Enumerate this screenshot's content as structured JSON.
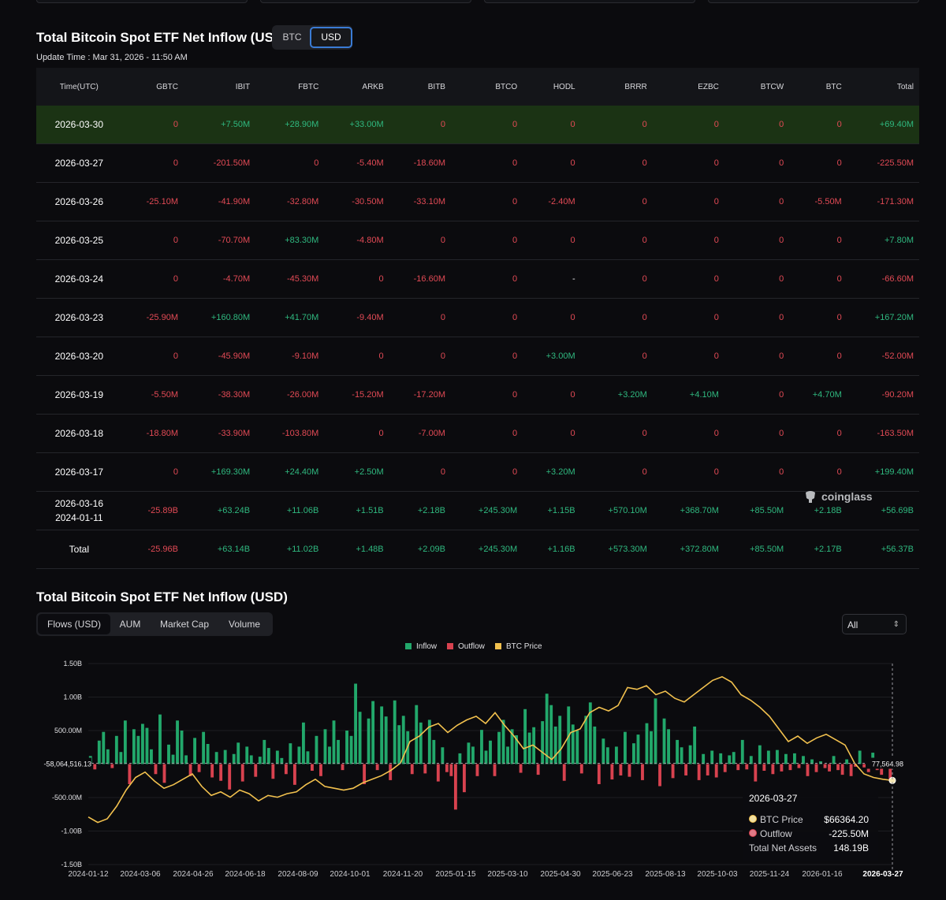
{
  "header": {
    "title": "Total Bitcoin Spot ETF Net Inflow (USD)",
    "units": [
      "BTC",
      "USD"
    ],
    "active_unit": "USD",
    "update_time": "Update Time : Mar 31, 2026 - 11:50 AM"
  },
  "table": {
    "columns": [
      "Time(UTC)",
      "GBTC",
      "IBIT",
      "FBTC",
      "ARKB",
      "BITB",
      "BTCO",
      "HODL",
      "BRRR",
      "EZBC",
      "BTCW",
      "BTC",
      "Total"
    ],
    "rows": [
      {
        "date": "2026-03-30",
        "date2": "",
        "cells": [
          "0",
          "+7.50M",
          "+28.90M",
          "+33.00M",
          "0",
          "0",
          "0",
          "0",
          "0",
          "0",
          "0",
          "+69.40M"
        ]
      },
      {
        "date": "2026-03-27",
        "date2": "",
        "cells": [
          "0",
          "-201.50M",
          "0",
          "-5.40M",
          "-18.60M",
          "0",
          "0",
          "0",
          "0",
          "0",
          "0",
          "-225.50M"
        ]
      },
      {
        "date": "2026-03-26",
        "date2": "",
        "cells": [
          "-25.10M",
          "-41.90M",
          "-32.80M",
          "-30.50M",
          "-33.10M",
          "0",
          "-2.40M",
          "0",
          "0",
          "0",
          "-5.50M",
          "-171.30M"
        ]
      },
      {
        "date": "2026-03-25",
        "date2": "",
        "cells": [
          "0",
          "-70.70M",
          "+83.30M",
          "-4.80M",
          "0",
          "0",
          "0",
          "0",
          "0",
          "0",
          "0",
          "+7.80M"
        ]
      },
      {
        "date": "2026-03-24",
        "date2": "",
        "cells": [
          "0",
          "-4.70M",
          "-45.30M",
          "0",
          "-16.60M",
          "0",
          "-",
          "0",
          "0",
          "0",
          "0",
          "-66.60M"
        ]
      },
      {
        "date": "2026-03-23",
        "date2": "",
        "cells": [
          "-25.90M",
          "+160.80M",
          "+41.70M",
          "-9.40M",
          "0",
          "0",
          "0",
          "0",
          "0",
          "0",
          "0",
          "+167.20M"
        ]
      },
      {
        "date": "2026-03-20",
        "date2": "",
        "cells": [
          "0",
          "-45.90M",
          "-9.10M",
          "0",
          "0",
          "0",
          "+3.00M",
          "0",
          "0",
          "0",
          "0",
          "-52.00M"
        ]
      },
      {
        "date": "2026-03-19",
        "date2": "",
        "cells": [
          "-5.50M",
          "-38.30M",
          "-26.00M",
          "-15.20M",
          "-17.20M",
          "0",
          "0",
          "+3.20M",
          "+4.10M",
          "0",
          "+4.70M",
          "-90.20M"
        ]
      },
      {
        "date": "2026-03-18",
        "date2": "",
        "cells": [
          "-18.80M",
          "-33.90M",
          "-103.80M",
          "0",
          "-7.00M",
          "0",
          "0",
          "0",
          "0",
          "0",
          "0",
          "-163.50M"
        ]
      },
      {
        "date": "2026-03-17",
        "date2": "",
        "cells": [
          "0",
          "+169.30M",
          "+24.40M",
          "+2.50M",
          "0",
          "0",
          "+3.20M",
          "0",
          "0",
          "0",
          "0",
          "+199.40M"
        ]
      },
      {
        "date": "2026-03-16",
        "date2": "2024-01-11",
        "cells": [
          "-25.89B",
          "+63.24B",
          "+11.06B",
          "+1.51B",
          "+2.18B",
          "+245.30M",
          "+1.15B",
          "+570.10M",
          "+368.70M",
          "+85.50M",
          "+2.18B",
          "+56.69B"
        ]
      },
      {
        "date": "Total",
        "date2": "",
        "cells": [
          "-25.96B",
          "+63.14B",
          "+11.02B",
          "+1.48B",
          "+2.09B",
          "+245.30M",
          "+1.16B",
          "+573.30M",
          "+372.80M",
          "+85.50M",
          "+2.17B",
          "+56.37B"
        ]
      }
    ]
  },
  "watermark": "coinglass",
  "chart_section": {
    "title": "Total Bitcoin Spot ETF Net Inflow (USD)",
    "tabs": [
      "Flows (USD)",
      "AUM",
      "Market Cap",
      "Volume"
    ],
    "active_tab": "Flows (USD)",
    "range_select": "All"
  },
  "tooltip": {
    "date": "2026-03-27",
    "price_label": "BTC Price",
    "price_value": "$66364.20",
    "flow_label": "Outflow",
    "flow_value": "-225.50M",
    "assets_label": "Total Net Assets",
    "assets_value": "148.19B"
  },
  "colors": {
    "inflow": "#22a86b",
    "outflow": "#d8424f",
    "price": "#f2c14e",
    "highlight_row": "#1b3314"
  },
  "chart_data": {
    "type": "bar",
    "title": "Total Bitcoin Spot ETF Net Inflow (USD)",
    "legend": [
      "Inflow",
      "Outflow",
      "BTC Price"
    ],
    "legend_position": "top-center",
    "ylim": [
      -1500000000,
      1500000000
    ],
    "yticks": [
      "1.50B",
      "1.00B",
      "500.00M",
      "-500.00M",
      "-1.00B",
      "-1.50B"
    ],
    "crosshair_left_label": "-58,064,516.13",
    "crosshair_right_label": "77,564.98",
    "x_tick_labels": [
      "2024-01-12",
      "2024-03-06",
      "2024-04-26",
      "2024-06-18",
      "2024-08-09",
      "2024-10-01",
      "2024-11-20",
      "2025-01-15",
      "2025-03-10",
      "2025-04-30",
      "2025-06-23",
      "2025-08-13",
      "2025-10-03",
      "2025-11-24",
      "2026-01-16",
      "2026-03-27"
    ],
    "flows_usd_m": [
      120,
      -80,
      350,
      480,
      220,
      -60,
      420,
      180,
      650,
      -300,
      520,
      420,
      600,
      540,
      220,
      -150,
      740,
      -280,
      290,
      140,
      650,
      500,
      130,
      -180,
      390,
      -120,
      480,
      300,
      -200,
      180,
      -250,
      210,
      -380,
      150,
      320,
      -260,
      260,
      130,
      -190,
      110,
      360,
      240,
      -220,
      200,
      90,
      -150,
      310,
      -310,
      260,
      620,
      190,
      -100,
      420,
      -180,
      520,
      260,
      650,
      360,
      -90,
      500,
      420,
      1200,
      780,
      -300,
      680,
      940,
      -90,
      860,
      710,
      -240,
      950,
      580,
      720,
      490,
      -150,
      880,
      620,
      -140,
      660,
      360,
      -260,
      250,
      -120,
      -180,
      -680,
      160,
      -420,
      320,
      260,
      -180,
      510,
      200,
      350,
      -180,
      480,
      660,
      260,
      520,
      430,
      -130,
      820,
      470,
      550,
      -160,
      640,
      1050,
      880,
      560,
      720,
      -250,
      860,
      590,
      500,
      -140,
      720,
      920,
      560,
      -300,
      380,
      250,
      -230,
      260,
      -170,
      480,
      -190,
      310,
      440,
      -240,
      610,
      490,
      980,
      -330,
      680,
      520,
      -210,
      360,
      250,
      -170,
      280,
      560,
      -240,
      150,
      -170,
      200,
      -200,
      160,
      -120,
      130,
      180,
      -90,
      360,
      -80,
      120,
      -260,
      280,
      -100,
      200,
      -150,
      210,
      -110,
      150,
      -90,
      160,
      -60,
      120,
      -180,
      70,
      -120,
      40,
      -60,
      -110,
      120,
      -90,
      -160,
      70,
      -180,
      -40,
      200,
      -50,
      -120,
      170,
      -90,
      -160,
      -52,
      -225
    ],
    "btc_price_usd": [
      46000,
      43000,
      45000,
      52000,
      61000,
      68000,
      71000,
      66000,
      62000,
      64000,
      67000,
      70000,
      63000,
      58000,
      60000,
      57000,
      61000,
      59000,
      55000,
      58000,
      57000,
      59000,
      60000,
      64000,
      67000,
      63000,
      62000,
      61000,
      62000,
      65000,
      67000,
      69000,
      72000,
      76000,
      88000,
      91000,
      96000,
      98000,
      93000,
      97000,
      100000,
      102000,
      98000,
      104000,
      97000,
      91000,
      84000,
      86000,
      82000,
      78000,
      84000,
      93000,
      95000,
      104000,
      107000,
      105000,
      108000,
      118000,
      117000,
      119000,
      114000,
      116000,
      112000,
      110000,
      114000,
      118000,
      122000,
      124000,
      121000,
      114000,
      111000,
      107000,
      102000,
      95000,
      88000,
      91000,
      87000,
      90000,
      92000,
      89000,
      86000,
      76000,
      70000,
      68000,
      67000,
      66364
    ]
  }
}
